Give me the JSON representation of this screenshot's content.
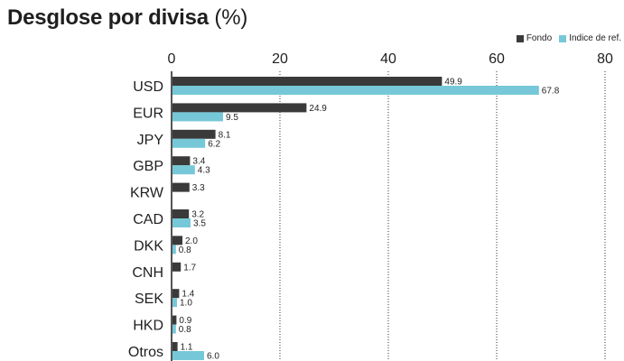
{
  "title_main": "Desglose por divisa ",
  "title_suffix": "(%)",
  "legend": {
    "fund_label": "Fondo",
    "benchmark_label": "Indice de ref."
  },
  "colors": {
    "fund": "#3a3a3a",
    "benchmark": "#76c8d8",
    "gridline": "#333333"
  },
  "chart_data": {
    "type": "bar",
    "orientation": "horizontal",
    "title": "Desglose por divisa (%)",
    "categories": [
      "USD",
      "EUR",
      "JPY",
      "GBP",
      "KRW",
      "CAD",
      "DKK",
      "CNH",
      "SEK",
      "HKD",
      "Otros"
    ],
    "series": [
      {
        "name": "Fondo",
        "values": [
          49.9,
          24.9,
          8.1,
          3.4,
          3.3,
          3.2,
          2.0,
          1.7,
          1.4,
          0.9,
          1.1
        ]
      },
      {
        "name": "Indice de ref.",
        "values": [
          67.8,
          9.5,
          6.2,
          4.3,
          null,
          3.5,
          0.8,
          null,
          1.0,
          0.8,
          6.0
        ]
      }
    ],
    "x_ticks": [
      0,
      20,
      40,
      60,
      80
    ],
    "xlim": [
      0,
      80
    ],
    "grid": "dotted vertical",
    "legend_position": "top-right"
  }
}
